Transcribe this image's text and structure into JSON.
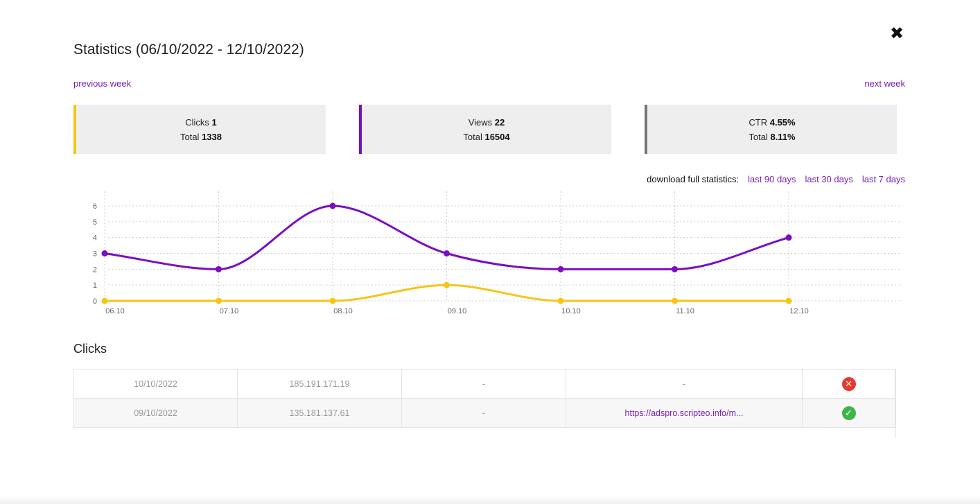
{
  "dialog": {
    "title": "Statistics (06/10/2022 - 12/10/2022)",
    "close_glyph": "✖",
    "previous_label": "previous week",
    "next_label": "next week"
  },
  "summary": {
    "clicks": {
      "label": "Clicks",
      "value": "1",
      "total_label": "Total",
      "total": "1338",
      "color": "#f5c518"
    },
    "views": {
      "label": "Views",
      "value": "22",
      "total_label": "Total",
      "total": "16504",
      "color": "#7a0fc2"
    },
    "ctr": {
      "label": "CTR",
      "value": "4.55%",
      "total_label": "Total",
      "total": "8.11%",
      "color": "#777777"
    }
  },
  "download": {
    "label": "download full statistics:",
    "links": [
      "last 90 days",
      "last 30 days",
      "last 7 days"
    ]
  },
  "chart_data": {
    "type": "line",
    "x": [
      "06.10",
      "07.10",
      "08.10",
      "09.10",
      "10.10",
      "11.10",
      "12.10"
    ],
    "y_ticks": [
      0,
      1,
      2,
      3,
      4,
      5,
      6
    ],
    "ylim": [
      0,
      6
    ],
    "grid": true,
    "series": [
      {
        "values": [
          3,
          2,
          6,
          3,
          2,
          2,
          4
        ],
        "color": "#7a0fc2"
      },
      {
        "values": [
          0,
          0,
          0,
          1,
          0,
          0,
          0
        ],
        "color": "#f5c518"
      }
    ]
  },
  "clicks_section": {
    "title": "Clicks",
    "rows": [
      {
        "date": "10/10/2022",
        "ip": "185.191.171.19",
        "col3": "-",
        "referrer": "-",
        "status": "invalid"
      },
      {
        "date": "09/10/2022",
        "ip": "135.181.137.61",
        "col3": "-",
        "referrer": "https://adspro.scripteo.info/m...",
        "status": "valid"
      }
    ]
  }
}
